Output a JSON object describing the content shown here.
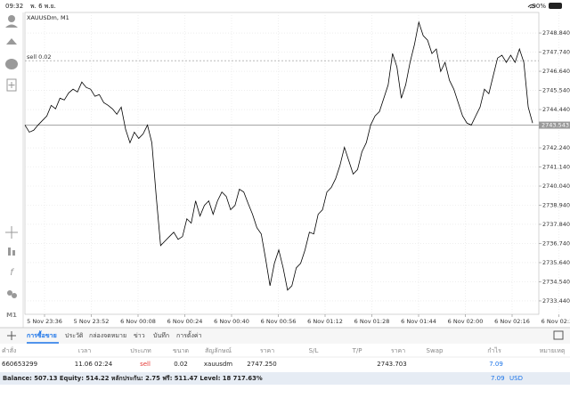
{
  "status_bar": {
    "time": "09:32",
    "date": "พ. 6 พ.ย.",
    "battery": "90%"
  },
  "chart_data": {
    "type": "line",
    "title": "XAUUSDm, M1",
    "color": "#000000",
    "grid": true,
    "xticks": [
      "5 Nov 23:36",
      "5 Nov 23:52",
      "6 Nov 00:08",
      "6 Nov 00:24",
      "6 Nov 00:40",
      "6 Nov 00:56",
      "6 Nov 01:12",
      "6 Nov 01:28",
      "6 Nov 01:44",
      "6 Nov 02:00",
      "6 Nov 02:16",
      "6 Nov 02:32"
    ],
    "ylim": [
      2732.67,
      2750.02
    ],
    "yticks": [
      {
        "value": 2748.84,
        "label": "2748.840"
      },
      {
        "value": 2747.74,
        "label": "2747.740"
      },
      {
        "value": 2746.64,
        "label": "2746.640"
      },
      {
        "value": 2745.54,
        "label": "2745.540"
      },
      {
        "value": 2744.44,
        "label": "2744.440"
      },
      {
        "value": 2742.24,
        "label": "2742.240"
      },
      {
        "value": 2741.14,
        "label": "2741.140"
      },
      {
        "value": 2740.04,
        "label": "2740.040"
      },
      {
        "value": 2738.94,
        "label": "2738.940"
      },
      {
        "value": 2737.84,
        "label": "2737.840"
      },
      {
        "value": 2736.74,
        "label": "2736.740"
      },
      {
        "value": 2735.64,
        "label": "2735.640"
      },
      {
        "value": 2734.54,
        "label": "2734.540"
      },
      {
        "value": 2733.44,
        "label": "2733.440"
      }
    ],
    "values": [
      2743.55,
      2743.14,
      2743.25,
      2743.55,
      2743.81,
      2744.07,
      2744.68,
      2744.48,
      2745.09,
      2744.99,
      2745.4,
      2745.61,
      2745.45,
      2746.02,
      2745.71,
      2745.61,
      2745.2,
      2745.3,
      2744.84,
      2744.68,
      2744.48,
      2744.17,
      2744.58,
      2743.3,
      2742.53,
      2743.14,
      2742.78,
      2743.04,
      2743.55,
      2742.53,
      2739.45,
      2736.62,
      2736.88,
      2737.14,
      2737.39,
      2736.98,
      2737.14,
      2738.16,
      2737.91,
      2739.19,
      2738.32,
      2738.93,
      2739.19,
      2738.42,
      2739.19,
      2739.7,
      2739.45,
      2738.68,
      2738.93,
      2739.86,
      2739.7,
      2739.04,
      2738.42,
      2737.65,
      2737.29,
      2735.85,
      2734.31,
      2735.6,
      2736.37,
      2735.34,
      2734.06,
      2734.31,
      2735.34,
      2735.6,
      2736.37,
      2737.39,
      2737.29,
      2738.42,
      2738.68,
      2739.7,
      2739.96,
      2740.47,
      2741.24,
      2742.27,
      2741.5,
      2740.73,
      2740.99,
      2742.01,
      2742.53,
      2743.55,
      2744.07,
      2744.32,
      2745.09,
      2745.86,
      2747.66,
      2746.89,
      2745.09,
      2745.86,
      2747.15,
      2748.17,
      2749.46,
      2748.69,
      2748.43,
      2747.66,
      2747.92,
      2746.63,
      2747.15,
      2746.12,
      2745.61,
      2744.84,
      2744.07,
      2743.66,
      2743.55,
      2744.07,
      2744.58,
      2745.61,
      2745.35,
      2746.38,
      2747.4,
      2747.56,
      2747.15,
      2747.56,
      2747.15,
      2747.92,
      2747.15,
      2744.58,
      2743.66
    ],
    "order_line": {
      "label": "sell 0.02",
      "value": 2747.25
    },
    "bid_line": {
      "label": "2743.543",
      "value": 2743.543
    }
  },
  "toolbar": {
    "timeframe": "M1"
  },
  "tabs": [
    "การซื้อขาย",
    "ประวัติ",
    "กล่องจดหมาย",
    "ข่าว",
    "บันทึก",
    "การตั้งค่า"
  ],
  "table": {
    "headers": [
      "คำสั่ง",
      "เวลา",
      "ประเภท",
      "ขนาด",
      "สัญลักษณ์",
      "ราคา",
      "S/L",
      "T/P",
      "ราคา",
      "Swap",
      "กำไร",
      "หมายเหตุ"
    ],
    "row": {
      "order": "660653299",
      "time": "11.06 02:24",
      "type": "sell",
      "volume": "0.02",
      "symbol": "xauusdm",
      "open_price": "2747.250",
      "price": "2743.703",
      "profit": "7.09"
    }
  },
  "footer": {
    "account": "Balance: 507.13 Equity: 514.22 หลักประกัน: 2.75 ฟรี: 511.47 Level: 18 717.63%",
    "profit": "7.09",
    "currency": "USD"
  }
}
